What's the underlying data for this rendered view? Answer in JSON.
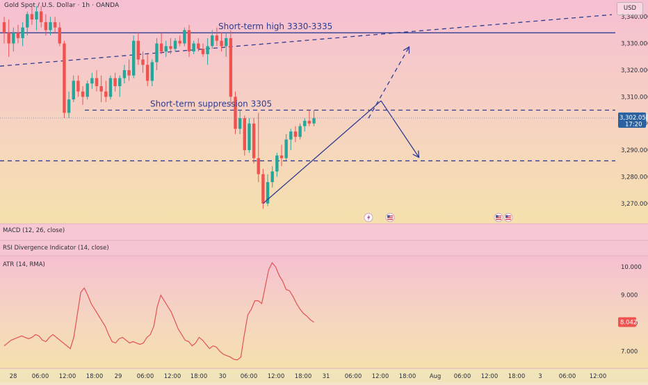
{
  "header": {
    "symbol_title": "Gold Spot / U.S. Dollar · 1h · OANDA",
    "currency": "USD"
  },
  "colors": {
    "up": "#26a69a",
    "down": "#ef5350",
    "drawing": "#2e3c91",
    "atr_line": "#e05252",
    "price_tag": "#2b61a0",
    "atr_tag": "#ef5350"
  },
  "chart_data": [
    {
      "type": "candlestick",
      "interval": "1h",
      "y_axis": {
        "min": 3265,
        "max": 3345,
        "ticks": [
          3270,
          3280,
          3290,
          3300,
          3310,
          3320,
          3330,
          3340
        ],
        "tick_labels": [
          "3,270.000",
          "3,280.000",
          "3,290.000",
          "3,300.000",
          "3,310.000",
          "3,320.000",
          "3,330.000",
          "3,340.000"
        ]
      },
      "x_axis": {
        "tick_labels": [
          "28",
          "06:00",
          "12:00",
          "18:00",
          "29",
          "06:00",
          "12:00",
          "18:00",
          "30",
          "06:00",
          "12:00",
          "18:00",
          "31",
          "06:00",
          "12:00",
          "18:00",
          "Aug",
          "06:00",
          "12:00",
          "18:00",
          "3",
          "06:00",
          "12:00"
        ]
      },
      "last_price": {
        "value": 3302.05,
        "label": "3,302.050",
        "countdown": "17:20"
      },
      "annotations": [
        {
          "text": "Short-term high 3330-3335",
          "level": 3334
        },
        {
          "text": "Short-term suppression 3305",
          "level": 3305
        }
      ],
      "horizontal_levels": [
        {
          "value": 3334,
          "style": "solid"
        },
        {
          "value": 3305,
          "style": "dashed"
        },
        {
          "value": 3286,
          "style": "dashed"
        }
      ],
      "event_icons": [
        "lightning-icon",
        "us-flag-icon",
        "us-flag-icon",
        "us-flag-icon"
      ],
      "candles": [
        {
          "o": 3338,
          "h": 3340,
          "l": 3330,
          "c": 3334
        },
        {
          "o": 3334,
          "h": 3339,
          "l": 3325,
          "c": 3330
        },
        {
          "o": 3330,
          "h": 3336,
          "l": 3327,
          "c": 3334
        },
        {
          "o": 3334,
          "h": 3337,
          "l": 3330,
          "c": 3332
        },
        {
          "o": 3332,
          "h": 3338,
          "l": 3329,
          "c": 3336
        },
        {
          "o": 3336,
          "h": 3342,
          "l": 3333,
          "c": 3341
        },
        {
          "o": 3341,
          "h": 3344,
          "l": 3337,
          "c": 3339
        },
        {
          "o": 3339,
          "h": 3344,
          "l": 3335,
          "c": 3342
        },
        {
          "o": 3342,
          "h": 3344,
          "l": 3336,
          "c": 3338
        },
        {
          "o": 3338,
          "h": 3341,
          "l": 3333,
          "c": 3335
        },
        {
          "o": 3335,
          "h": 3340,
          "l": 3333,
          "c": 3338
        },
        {
          "o": 3338,
          "h": 3340,
          "l": 3334,
          "c": 3336
        },
        {
          "o": 3336,
          "h": 3338,
          "l": 3329,
          "c": 3330
        },
        {
          "o": 3330,
          "h": 3331,
          "l": 3302,
          "c": 3304
        },
        {
          "o": 3304,
          "h": 3312,
          "l": 3302,
          "c": 3309
        },
        {
          "o": 3309,
          "h": 3318,
          "l": 3308,
          "c": 3316
        },
        {
          "o": 3316,
          "h": 3318,
          "l": 3310,
          "c": 3312
        },
        {
          "o": 3312,
          "h": 3314,
          "l": 3307,
          "c": 3310
        },
        {
          "o": 3310,
          "h": 3316,
          "l": 3309,
          "c": 3315
        },
        {
          "o": 3315,
          "h": 3319,
          "l": 3313,
          "c": 3317
        },
        {
          "o": 3317,
          "h": 3320,
          "l": 3312,
          "c": 3314
        },
        {
          "o": 3314,
          "h": 3318,
          "l": 3308,
          "c": 3312
        },
        {
          "o": 3312,
          "h": 3316,
          "l": 3308,
          "c": 3310
        },
        {
          "o": 3310,
          "h": 3318,
          "l": 3309,
          "c": 3317
        },
        {
          "o": 3317,
          "h": 3319,
          "l": 3312,
          "c": 3314
        },
        {
          "o": 3314,
          "h": 3318,
          "l": 3310,
          "c": 3317
        },
        {
          "o": 3317,
          "h": 3322,
          "l": 3315,
          "c": 3320
        },
        {
          "o": 3320,
          "h": 3324,
          "l": 3316,
          "c": 3318
        },
        {
          "o": 3318,
          "h": 3333,
          "l": 3317,
          "c": 3331
        },
        {
          "o": 3331,
          "h": 3334,
          "l": 3322,
          "c": 3324
        },
        {
          "o": 3324,
          "h": 3327,
          "l": 3319,
          "c": 3322
        },
        {
          "o": 3322,
          "h": 3326,
          "l": 3314,
          "c": 3316
        },
        {
          "o": 3316,
          "h": 3324,
          "l": 3314,
          "c": 3323
        },
        {
          "o": 3323,
          "h": 3332,
          "l": 3320,
          "c": 3330
        },
        {
          "o": 3330,
          "h": 3334,
          "l": 3326,
          "c": 3327
        },
        {
          "o": 3327,
          "h": 3331,
          "l": 3325,
          "c": 3329
        },
        {
          "o": 3329,
          "h": 3332,
          "l": 3326,
          "c": 3328
        },
        {
          "o": 3328,
          "h": 3332,
          "l": 3327,
          "c": 3331
        },
        {
          "o": 3331,
          "h": 3333,
          "l": 3329,
          "c": 3330
        },
        {
          "o": 3330,
          "h": 3336,
          "l": 3329,
          "c": 3335
        },
        {
          "o": 3335,
          "h": 3337,
          "l": 3325,
          "c": 3327
        },
        {
          "o": 3327,
          "h": 3331,
          "l": 3326,
          "c": 3330
        },
        {
          "o": 3330,
          "h": 3332,
          "l": 3327,
          "c": 3328
        },
        {
          "o": 3328,
          "h": 3330,
          "l": 3325,
          "c": 3326
        },
        {
          "o": 3326,
          "h": 3332,
          "l": 3322,
          "c": 3329
        },
        {
          "o": 3329,
          "h": 3335,
          "l": 3328,
          "c": 3333
        },
        {
          "o": 3333,
          "h": 3336,
          "l": 3329,
          "c": 3331
        },
        {
          "o": 3331,
          "h": 3334,
          "l": 3327,
          "c": 3329
        },
        {
          "o": 3329,
          "h": 3334,
          "l": 3325,
          "c": 3332
        },
        {
          "o": 3332,
          "h": 3335,
          "l": 3307,
          "c": 3310
        },
        {
          "o": 3310,
          "h": 3312,
          "l": 3296,
          "c": 3298
        },
        {
          "o": 3298,
          "h": 3305,
          "l": 3296,
          "c": 3302
        },
        {
          "o": 3302,
          "h": 3303,
          "l": 3288,
          "c": 3290
        },
        {
          "o": 3290,
          "h": 3302,
          "l": 3289,
          "c": 3300
        },
        {
          "o": 3300,
          "h": 3302,
          "l": 3285,
          "c": 3287
        },
        {
          "o": 3287,
          "h": 3304,
          "l": 3278,
          "c": 3281
        },
        {
          "o": 3281,
          "h": 3283,
          "l": 3268,
          "c": 3270
        },
        {
          "o": 3270,
          "h": 3281,
          "l": 3269,
          "c": 3278
        },
        {
          "o": 3278,
          "h": 3284,
          "l": 3276,
          "c": 3282
        },
        {
          "o": 3282,
          "h": 3289,
          "l": 3280,
          "c": 3288
        },
        {
          "o": 3288,
          "h": 3292,
          "l": 3284,
          "c": 3287
        },
        {
          "o": 3287,
          "h": 3296,
          "l": 3286,
          "c": 3294
        },
        {
          "o": 3294,
          "h": 3298,
          "l": 3290,
          "c": 3297
        },
        {
          "o": 3297,
          "h": 3299,
          "l": 3293,
          "c": 3295
        },
        {
          "o": 3295,
          "h": 3300,
          "l": 3294,
          "c": 3299
        },
        {
          "o": 3299,
          "h": 3302,
          "l": 3297,
          "c": 3301
        },
        {
          "o": 3301,
          "h": 3305,
          "l": 3299,
          "c": 3300
        },
        {
          "o": 3300,
          "h": 3305,
          "l": 3299,
          "c": 3302
        }
      ]
    },
    {
      "type": "line",
      "indicator": "MACD (12, 26, close)",
      "collapsed": true
    },
    {
      "type": "line",
      "indicator": "RSI Divergence Indicator (14, close)",
      "collapsed": true
    },
    {
      "type": "line",
      "indicator": "ATR (14, RMA)",
      "y_axis": {
        "min": 6.5,
        "max": 10.25,
        "ticks": [
          7,
          8,
          9,
          10
        ],
        "tick_labels": [
          "7.000",
          "8.000",
          "9.000",
          "10.000"
        ]
      },
      "last_value": {
        "value": 8.042,
        "label": "8.042"
      },
      "values": [
        7.2,
        7.3,
        7.4,
        7.45,
        7.5,
        7.55,
        7.5,
        7.45,
        7.5,
        7.6,
        7.55,
        7.4,
        7.35,
        7.5,
        7.6,
        7.5,
        7.4,
        7.3,
        7.2,
        7.1,
        7.5,
        8.3,
        9.1,
        9.25,
        9.0,
        8.7,
        8.5,
        8.3,
        8.1,
        7.9,
        7.6,
        7.35,
        7.3,
        7.45,
        7.5,
        7.4,
        7.3,
        7.35,
        7.3,
        7.25,
        7.3,
        7.5,
        7.6,
        7.9,
        8.6,
        9.0,
        8.8,
        8.6,
        8.4,
        8.1,
        7.8,
        7.6,
        7.4,
        7.35,
        7.2,
        7.3,
        7.5,
        7.4,
        7.25,
        7.1,
        7.2,
        7.15,
        7.0,
        6.9,
        6.85,
        6.8,
        6.72,
        6.7,
        6.8,
        7.6,
        8.3,
        8.5,
        8.8,
        8.8,
        8.7,
        9.3,
        9.9,
        10.15,
        10.0,
        9.7,
        9.5,
        9.2,
        9.15,
        8.95,
        8.7,
        8.5,
        8.35,
        8.25,
        8.12,
        8.04
      ]
    }
  ]
}
